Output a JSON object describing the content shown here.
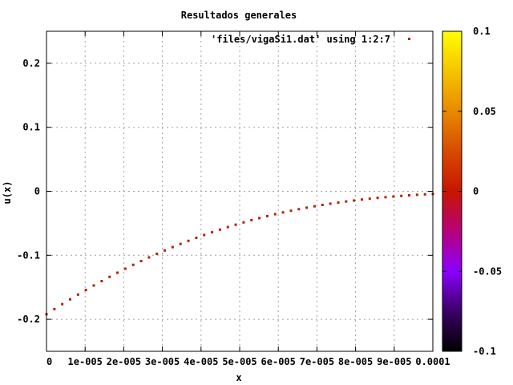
{
  "chart_data": {
    "type": "scatter",
    "title": "Resultados generales",
    "xlabel": "x",
    "ylabel": "u(x)",
    "xlim": [
      0,
      0.0001
    ],
    "ylim": [
      -0.25,
      0.25
    ],
    "grid": true,
    "legend_position": "top-right",
    "series": [
      {
        "name": "'files/vigaSi1.dat' using 1:2:7",
        "color": "#b22200",
        "x": [
          0,
          2.04e-06,
          4.08e-06,
          6.12e-06,
          8.16e-06,
          1.02e-05,
          1.224e-05,
          1.429e-05,
          1.633e-05,
          1.837e-05,
          2.041e-05,
          2.245e-05,
          2.449e-05,
          2.653e-05,
          2.857e-05,
          3.061e-05,
          3.265e-05,
          3.469e-05,
          3.673e-05,
          3.878e-05,
          4.082e-05,
          4.286e-05,
          4.49e-05,
          4.694e-05,
          4.898e-05,
          5.102e-05,
          5.306e-05,
          5.51e-05,
          5.714e-05,
          5.918e-05,
          6.122e-05,
          6.327e-05,
          6.531e-05,
          6.735e-05,
          6.939e-05,
          7.143e-05,
          7.347e-05,
          7.551e-05,
          7.755e-05,
          7.959e-05,
          8.163e-05,
          8.367e-05,
          8.571e-05,
          8.776e-05,
          8.98e-05,
          9.184e-05,
          9.388e-05,
          9.592e-05,
          9.796e-05,
          0.0001
        ],
        "y": [
          -0.192,
          -0.1841,
          -0.1763,
          -0.1688,
          -0.1614,
          -0.1542,
          -0.1472,
          -0.1403,
          -0.1337,
          -0.1272,
          -0.121,
          -0.1149,
          -0.109,
          -0.1033,
          -0.0977,
          -0.0924,
          -0.0872,
          -0.0822,
          -0.0774,
          -0.0727,
          -0.0683,
          -0.064,
          -0.0599,
          -0.0559,
          -0.0522,
          -0.0486,
          -0.0451,
          -0.0419,
          -0.0388,
          -0.0358,
          -0.033,
          -0.0304,
          -0.0279,
          -0.0256,
          -0.0234,
          -0.0213,
          -0.0194,
          -0.0176,
          -0.0159,
          -0.0144,
          -0.0129,
          -0.0116,
          -0.0103,
          -0.0092,
          -0.0082,
          -0.0072,
          -0.0063,
          -0.0055,
          -0.0048,
          -0.0041
        ]
      }
    ],
    "xticks": [
      {
        "v": 0,
        "label": "0"
      },
      {
        "v": 1e-05,
        "label": "1e-005"
      },
      {
        "v": 2e-05,
        "label": "2e-005"
      },
      {
        "v": 3e-05,
        "label": "3e-005"
      },
      {
        "v": 4e-05,
        "label": "4e-005"
      },
      {
        "v": 5e-05,
        "label": "5e-005"
      },
      {
        "v": 6e-05,
        "label": "6e-005"
      },
      {
        "v": 7e-05,
        "label": "7e-005"
      },
      {
        "v": 8e-05,
        "label": "8e-005"
      },
      {
        "v": 9e-05,
        "label": "9e-005"
      },
      {
        "v": 0.0001,
        "label": "0.0001"
      }
    ],
    "yticks": [
      {
        "v": -0.2,
        "label": "-0.2"
      },
      {
        "v": -0.1,
        "label": "-0.1"
      },
      {
        "v": 0,
        "label": "0"
      },
      {
        "v": 0.1,
        "label": "0.1"
      },
      {
        "v": 0.2,
        "label": "0.2"
      }
    ],
    "colorbar": {
      "range": [
        -0.1,
        0.1
      ],
      "palette": [
        "#000000",
        "#3a0066",
        "#8a00ff",
        "#b8007a",
        "#c81500",
        "#d84a00",
        "#e88a00",
        "#f6c400",
        "#ffff00"
      ],
      "ticks": [
        {
          "v": 0.1,
          "label": "0.1"
        },
        {
          "v": 0.05,
          "label": "0.05"
        },
        {
          "v": 0,
          "label": "0"
        },
        {
          "v": -0.05,
          "label": "-0.05"
        },
        {
          "v": -0.1,
          "label": "-0.1"
        }
      ]
    }
  }
}
